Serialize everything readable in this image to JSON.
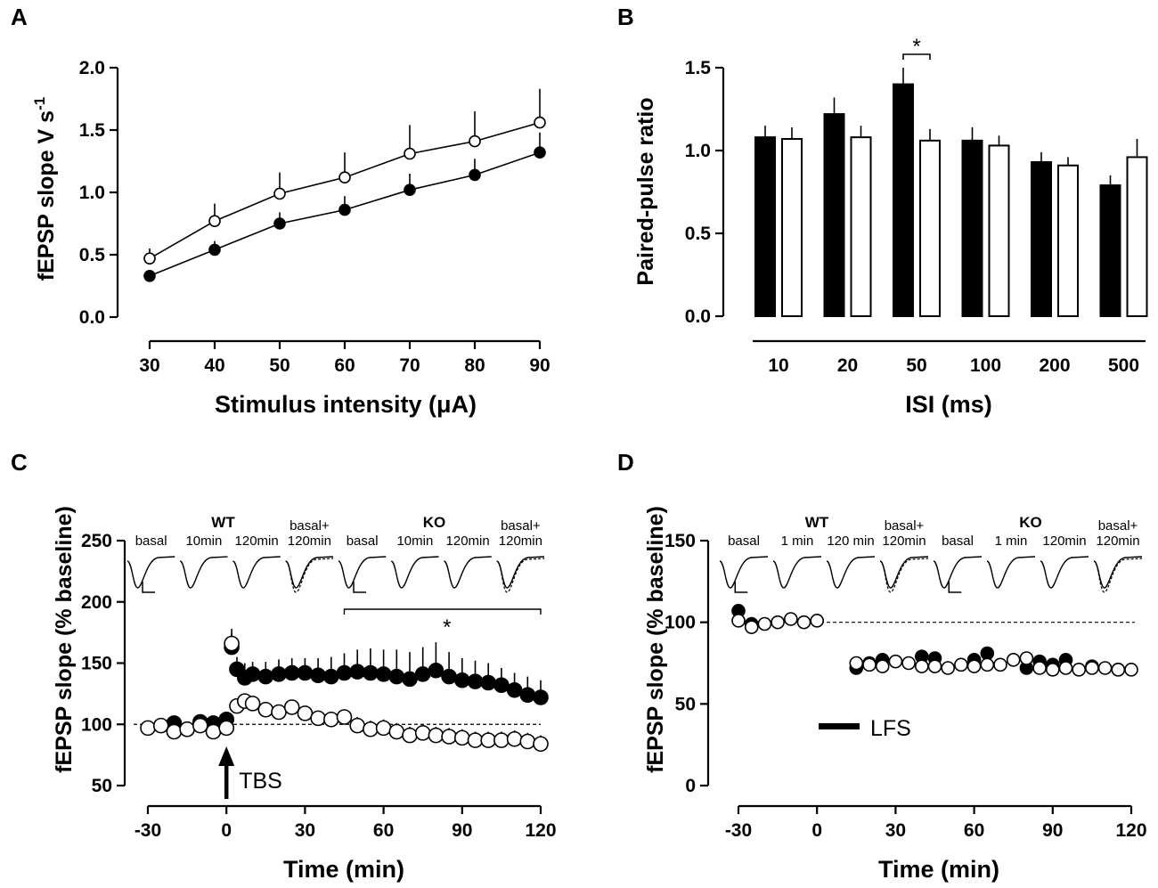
{
  "chart_data": [
    {
      "panel": "A",
      "type": "line",
      "xlabel_main": "Stimulus intensity (",
      "xlabel_unit": "μA",
      "xlabel_close": ")",
      "ylabel": "fEPSP slope V s",
      "ylabel_exp": "-1",
      "xlim": [
        30,
        90
      ],
      "ylim": [
        0,
        2
      ],
      "x_ticks": [
        "30",
        "40",
        "50",
        "60",
        "70",
        "80",
        "90"
      ],
      "y_ticks": [
        "0.0",
        "0.5",
        "1.0",
        "1.5",
        "2.0"
      ],
      "x": [
        30,
        40,
        50,
        60,
        70,
        80,
        90
      ],
      "series": [
        {
          "name": "open",
          "fill": "#ffffff",
          "values": [
            0.47,
            0.77,
            0.99,
            1.12,
            1.31,
            1.41,
            1.56
          ],
          "errors": [
            0.08,
            0.14,
            0.17,
            0.2,
            0.23,
            0.24,
            0.27
          ]
        },
        {
          "name": "filled",
          "fill": "#000000",
          "values": [
            0.33,
            0.54,
            0.75,
            0.86,
            1.02,
            1.14,
            1.32
          ],
          "errors": [
            0.03,
            0.07,
            0.09,
            0.11,
            0.13,
            0.13,
            0.16
          ]
        }
      ]
    },
    {
      "panel": "B",
      "type": "bar",
      "xlabel": "ISI (ms)",
      "ylabel": "Paired-pulse ratio",
      "ylim": [
        0,
        1.5
      ],
      "y_ticks": [
        "0.0",
        "0.5",
        "1.0",
        "1.5"
      ],
      "categories": [
        "10",
        "20",
        "50",
        "100",
        "200",
        "500"
      ],
      "series": [
        {
          "name": "filled",
          "fill": "#000000",
          "values": [
            1.08,
            1.22,
            1.4,
            1.06,
            0.93,
            0.79
          ],
          "errors": [
            0.07,
            0.1,
            0.1,
            0.08,
            0.06,
            0.06
          ]
        },
        {
          "name": "open",
          "fill": "#ffffff",
          "values": [
            1.07,
            1.08,
            1.06,
            1.03,
            0.91,
            0.96
          ],
          "errors": [
            0.07,
            0.07,
            0.07,
            0.06,
            0.05,
            0.11
          ]
        }
      ],
      "annotation": "*"
    },
    {
      "panel": "C",
      "type": "scatter",
      "xlabel": "Time (min)",
      "ylabel": "fEPSP slope (% baseline)",
      "xlim": [
        -30,
        120
      ],
      "ylim": [
        50,
        250
      ],
      "x_ticks": [
        "-30",
        "0",
        "30",
        "60",
        "90",
        "120"
      ],
      "y_ticks": [
        "50",
        "100",
        "150",
        "200",
        "250"
      ],
      "baseline": 100,
      "stimulus_label": "TBS",
      "significance": "*",
      "trace_groups": [
        {
          "name": "WT",
          "labels": [
            "basal",
            "10min",
            "120min",
            "basal+\n120min"
          ]
        },
        {
          "name": "KO",
          "labels": [
            "basal",
            "10min",
            "120min",
            "basal+\n120min"
          ]
        }
      ],
      "series": [
        {
          "name": "filled",
          "fill": "#000000",
          "x": [
            -20,
            -15,
            -10,
            -5,
            0,
            2,
            4,
            7,
            10,
            15,
            20,
            25,
            30,
            35,
            40,
            45,
            50,
            55,
            60,
            65,
            70,
            75,
            80,
            85,
            90,
            95,
            100,
            105,
            110,
            115,
            120
          ],
          "values": [
            101,
            96,
            102,
            101,
            104,
            163,
            145,
            138,
            141,
            139,
            141,
            142,
            142,
            140,
            139,
            142,
            143,
            142,
            141,
            139,
            137,
            141,
            144,
            139,
            136,
            135,
            134,
            132,
            128,
            124,
            122
          ],
          "errors": [
            3,
            3,
            3,
            3,
            4,
            15,
            10,
            12,
            10,
            12,
            12,
            12,
            12,
            14,
            16,
            16,
            18,
            20,
            20,
            22,
            22,
            22,
            23,
            20,
            18,
            17,
            16,
            14,
            14,
            15,
            14
          ]
        },
        {
          "name": "open",
          "fill": "#ffffff",
          "x": [
            -30,
            -25,
            -20,
            -15,
            -10,
            -5,
            0,
            2,
            4,
            7,
            10,
            15,
            20,
            25,
            30,
            35,
            40,
            45,
            50,
            55,
            60,
            65,
            70,
            75,
            80,
            85,
            90,
            95,
            100,
            105,
            110,
            115,
            120
          ],
          "values": [
            97,
            99,
            94,
            96,
            99,
            94,
            97,
            166,
            115,
            119,
            117,
            112,
            110,
            114,
            109,
            105,
            104,
            106,
            99,
            96,
            97,
            94,
            91,
            93,
            91,
            90,
            89,
            87,
            87,
            87,
            88,
            86,
            84
          ],
          "errors": [
            3,
            3,
            3,
            3,
            3,
            3,
            3,
            8,
            6,
            6,
            6,
            6,
            6,
            6,
            6,
            6,
            6,
            6,
            7,
            7,
            7,
            7,
            7,
            7,
            7,
            7,
            7,
            7,
            7,
            7,
            7,
            7,
            7
          ]
        }
      ]
    },
    {
      "panel": "D",
      "type": "scatter",
      "xlabel": "Time (min)",
      "ylabel": "fEPSP slope (% baseline)",
      "xlim": [
        -30,
        120
      ],
      "ylim": [
        0,
        150
      ],
      "x_ticks": [
        "-30",
        "0",
        "30",
        "60",
        "90",
        "120"
      ],
      "y_ticks": [
        "0",
        "50",
        "100",
        "150"
      ],
      "baseline": 100,
      "stimulus_label": "LFS",
      "trace_groups": [
        {
          "name": "WT",
          "labels": [
            "basal",
            "1 min",
            "120 min",
            "basal+\n120min"
          ]
        },
        {
          "name": "KO",
          "labels": [
            "basal",
            "1 min",
            "120min",
            "basal+\n120min"
          ]
        }
      ],
      "series": [
        {
          "name": "filled",
          "fill": "#000000",
          "x": [
            -30,
            -25,
            15,
            20,
            25,
            40,
            45,
            60,
            65,
            80,
            85,
            90,
            95,
            105,
            115
          ],
          "values": [
            107,
            99,
            72,
            75,
            77,
            79,
            78,
            77,
            81,
            72,
            76,
            74,
            77,
            73,
            71
          ],
          "errors": [
            2,
            2,
            3,
            4,
            4,
            4,
            4,
            4,
            4,
            4,
            4,
            4,
            4,
            4,
            4
          ]
        },
        {
          "name": "open",
          "fill": "#ffffff",
          "x": [
            -30,
            -25,
            -20,
            -15,
            -10,
            -5,
            0,
            15,
            20,
            25,
            30,
            35,
            40,
            45,
            50,
            55,
            60,
            65,
            70,
            75,
            80,
            85,
            90,
            95,
            100,
            105,
            110,
            115,
            120
          ],
          "values": [
            101,
            97,
            99,
            100,
            102,
            100,
            101,
            75,
            74,
            73,
            76,
            75,
            73,
            73,
            72,
            74,
            73,
            74,
            74,
            77,
            78,
            72,
            71,
            72,
            71,
            72,
            72,
            71,
            71
          ],
          "errors": [
            2,
            2,
            2,
            2,
            2,
            2,
            2,
            4,
            4,
            5,
            4,
            4,
            5,
            4,
            4,
            4,
            4,
            4,
            4,
            4,
            4,
            4,
            4,
            4,
            4,
            4,
            4,
            4,
            4
          ]
        }
      ]
    }
  ]
}
